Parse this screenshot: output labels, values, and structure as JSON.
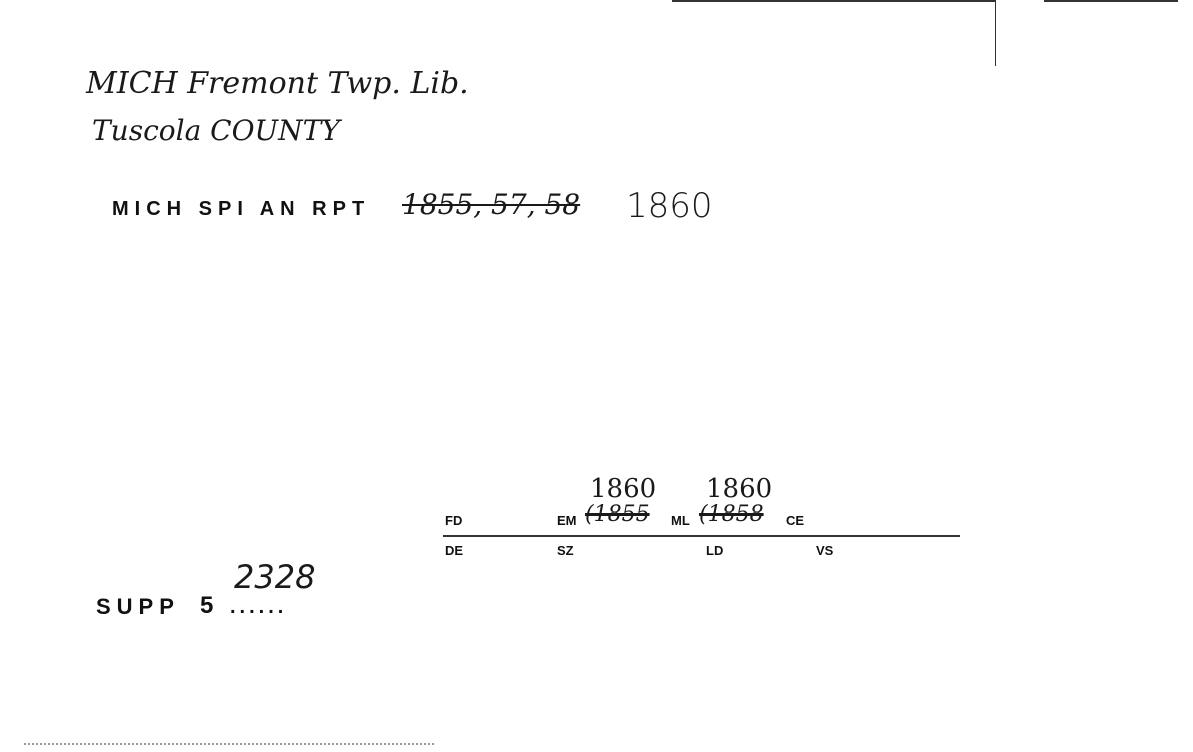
{
  "card": {
    "title_line1": "MICH Fremont Twp. Lib.",
    "title_line2": "Tuscola COUNTY",
    "report_label": "MICH SPI AN RPT",
    "report_struck_years": "1855, 57, 58",
    "report_year": "1860",
    "fields": {
      "fd": "FD",
      "em": "EM",
      "em_struck": "(1855",
      "em_handwritten": "1860",
      "ml": "ML",
      "ml_struck": "(1858",
      "ml_handwritten": "1860",
      "ce": "CE",
      "de": "DE",
      "sz": "SZ",
      "ld": "LD",
      "vs": "VS"
    },
    "supp_label": "SUPP",
    "supp_number": "5",
    "supp_dots": "......",
    "supp_handwritten": "2328"
  }
}
